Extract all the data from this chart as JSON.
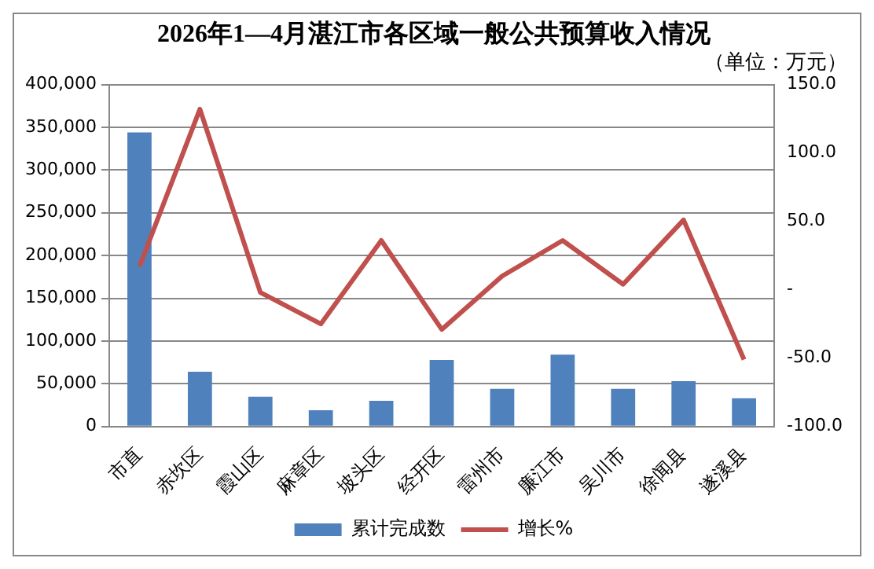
{
  "chart_data": {
    "type": "bar",
    "title": "2026年1—4月湛江市各区域一般公共预算收入情况",
    "subtitle": "（单位：万元）",
    "categories": [
      "市直",
      "赤坎区",
      "霞山区",
      "麻章区",
      "坡头区",
      "经开区",
      "雷州市",
      "廉江市",
      "吴川市",
      "徐闻县",
      "遂溪县"
    ],
    "series": [
      {
        "name": "累计完成数",
        "color": "#4f81bd",
        "values": [
          344000,
          64000,
          35000,
          19000,
          30000,
          78000,
          44000,
          84000,
          44000,
          53000,
          33000
        ]
      },
      {
        "name": "增长%",
        "type": "line",
        "axis": "y2",
        "color": "#c0504d",
        "marker": "none",
        "values": [
          17,
          132,
          -2,
          -25,
          36,
          -29,
          10,
          36,
          4,
          51,
          -51
        ]
      }
    ],
    "ylim": [
      0,
      400000
    ],
    "yticks": [
      0,
      {
        "value": 50000,
        "label": "50,000"
      },
      {
        "value": 100000,
        "label": "100,000"
      },
      {
        "value": 150000,
        "label": "150,000"
      },
      {
        "value": 200000,
        "label": "200,000"
      },
      {
        "value": 250000,
        "label": "250,000"
      },
      {
        "value": 300000,
        "label": "300,000"
      },
      {
        "value": 350000,
        "label": "350,000"
      },
      {
        "value": 400000,
        "label": "400,000"
      }
    ],
    "y2lim": [
      -100,
      150
    ],
    "y2ticks": [
      {
        "value": -100,
        "label": "-100.0"
      },
      {
        "value": -50,
        "label": "-50.0"
      },
      {
        "value": 0,
        "label": "-"
      },
      {
        "value": 50,
        "label": "50.0"
      },
      {
        "value": 100,
        "label": "100.0"
      },
      {
        "value": 150,
        "label": "150.0"
      }
    ],
    "grid": "y",
    "legend": "bottom"
  }
}
